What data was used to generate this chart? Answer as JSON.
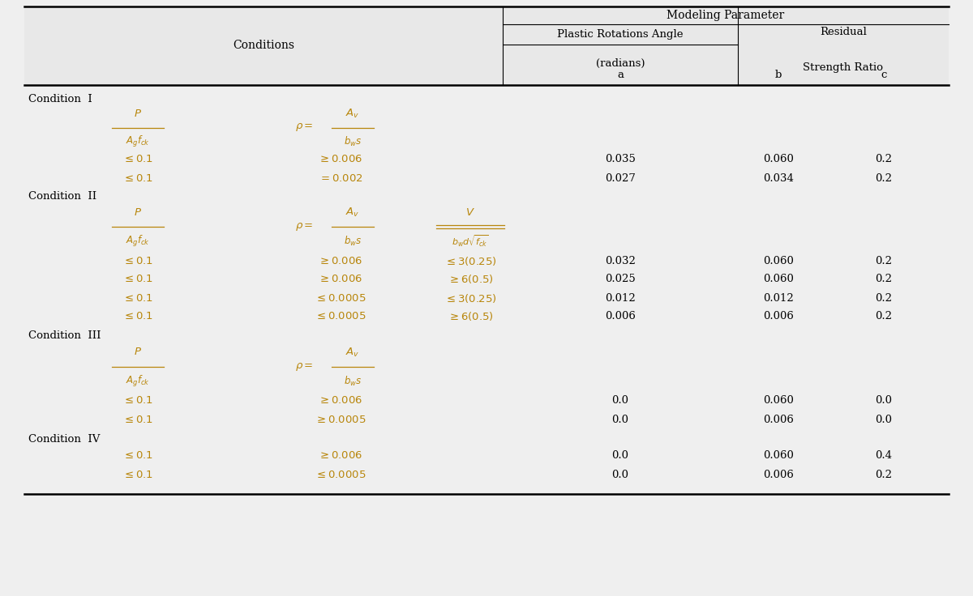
{
  "bg_color": "#efefef",
  "white": "#ffffff",
  "fc": "#b8860b",
  "black": "#000000",
  "fig_w": 12.0,
  "fig_h": 7.36,
  "dpi": 100,
  "title": "Modeling Parameter",
  "cond_header": "Conditions",
  "pra": "Plastic Rotations Angle",
  "radians": "(radians)",
  "residual": "Residual",
  "strength_ratio": "Strength Ratio",
  "col_a": "a",
  "col_b": "b",
  "col_c": "c",
  "cond1": "Condition  I",
  "cond2": "Condition  II",
  "cond3": "Condition  III",
  "cond4": "Condition  IV"
}
